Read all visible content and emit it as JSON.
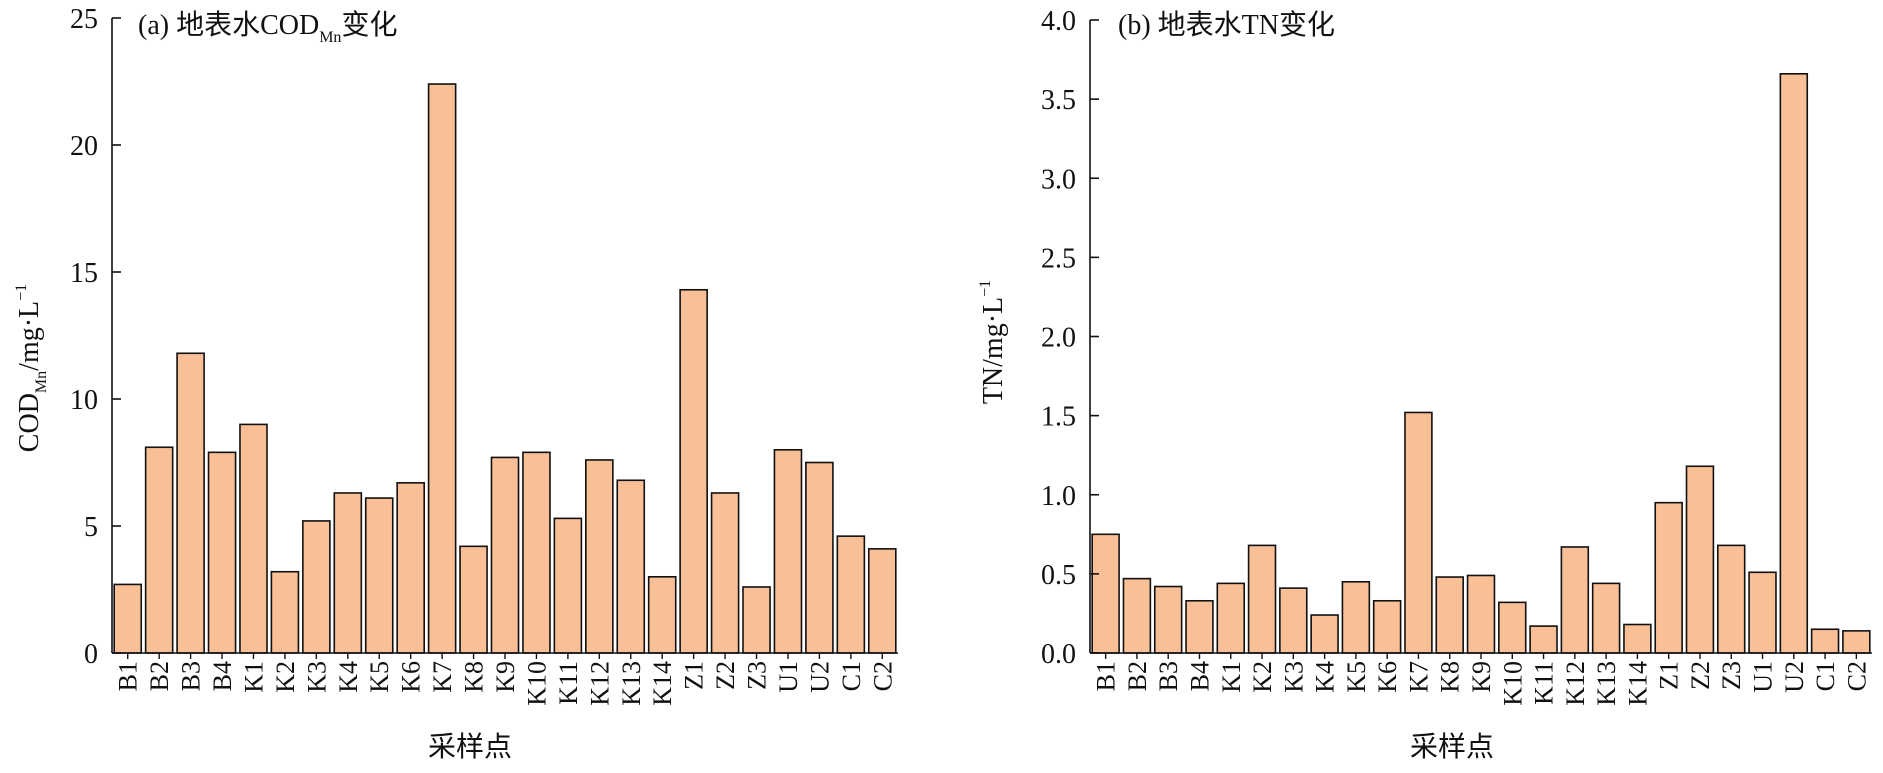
{
  "chart_data": [
    {
      "type": "bar",
      "title": "(a) 地表水COD",
      "title_sub": "Mn",
      "title_suffix": "变化",
      "ylabel": "COD",
      "ylabel_sub": "Mn",
      "ylabel_unit": "/mg·L",
      "ylabel_sup": "−1",
      "xlabel": "采样点",
      "ylim": [
        0,
        25
      ],
      "yticks": [
        0,
        5,
        10,
        15,
        20,
        25
      ],
      "ytick_labels": [
        "0",
        "5",
        "10",
        "15",
        "20",
        "25"
      ],
      "categories": [
        "B1",
        "B2",
        "B3",
        "B4",
        "K1",
        "K2",
        "K3",
        "K4",
        "K5",
        "K6",
        "K7",
        "K8",
        "K9",
        "K10",
        "K11",
        "K12",
        "K13",
        "K14",
        "Z1",
        "Z2",
        "Z3",
        "U1",
        "U2",
        "C1",
        "C2"
      ],
      "values": [
        2.7,
        8.1,
        11.8,
        7.9,
        9.0,
        3.2,
        5.2,
        6.3,
        6.1,
        6.7,
        22.4,
        4.2,
        7.7,
        7.9,
        5.3,
        7.6,
        6.8,
        3.0,
        14.3,
        6.3,
        2.6,
        8.0,
        7.5,
        4.6,
        4.1
      ],
      "bar_color": "#F9BF97",
      "grid": false
    },
    {
      "type": "bar",
      "title": "(b) 地表水TN变化",
      "ylabel": "TN/mg·L",
      "ylabel_sup": "−1",
      "xlabel": "采样点",
      "ylim": [
        0,
        4.0
      ],
      "yticks": [
        0,
        0.5,
        1.0,
        1.5,
        2.0,
        2.5,
        3.0,
        3.5,
        4.0
      ],
      "ytick_labels": [
        "0.0",
        "0.5",
        "1.0",
        "1.5",
        "2.0",
        "2.5",
        "3.0",
        "3.5",
        "4.0"
      ],
      "categories": [
        "B1",
        "B2",
        "B3",
        "B4",
        "K1",
        "K2",
        "K3",
        "K4",
        "K5",
        "K6",
        "K7",
        "K8",
        "K9",
        "K10",
        "K11",
        "K12",
        "K13",
        "K14",
        "Z1",
        "Z2",
        "Z3",
        "U1",
        "U2",
        "C1",
        "C2"
      ],
      "values": [
        0.75,
        0.47,
        0.42,
        0.33,
        0.44,
        0.68,
        0.41,
        0.24,
        0.45,
        0.33,
        1.52,
        0.48,
        0.49,
        0.32,
        0.17,
        0.67,
        0.44,
        0.18,
        0.95,
        1.18,
        0.68,
        0.51,
        3.66,
        0.15,
        0.14
      ],
      "bar_color": "#F9BF97",
      "grid": false
    }
  ]
}
